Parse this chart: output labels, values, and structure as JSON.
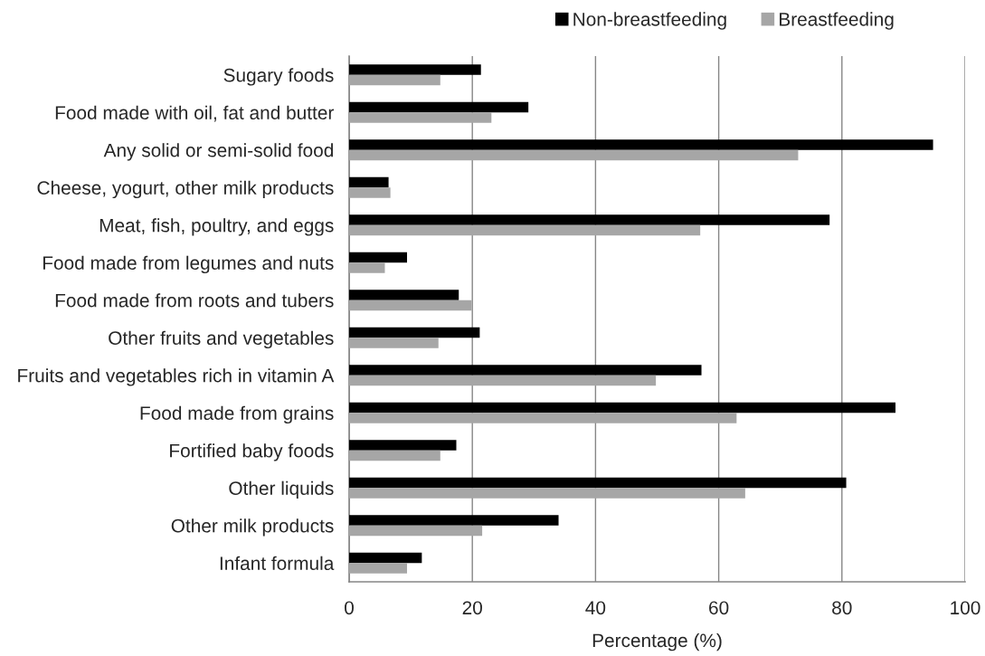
{
  "chart_data": {
    "type": "bar",
    "orientation": "horizontal",
    "categories": [
      "Sugary foods",
      "Food made with oil, fat and butter",
      "Any solid or semi-solid food",
      "Cheese, yogurt, other milk products",
      "Meat, fish, poultry, and eggs",
      "Food made from legumes and nuts",
      "Food made from roots and tubers",
      "Other fruits and vegetables",
      "Fruits and vegetables rich in vitamin A",
      "Food made from grains",
      "Fortified baby foods",
      "Other liquids",
      "Other milk products",
      "Infant formula"
    ],
    "series": [
      {
        "name": "Non-breastfeeding",
        "color": "#000000",
        "values": [
          21.4,
          29.1,
          94.8,
          6.4,
          78.0,
          9.4,
          17.8,
          21.2,
          57.2,
          88.7,
          17.4,
          80.7,
          34.0,
          11.8
        ]
      },
      {
        "name": "Breastfeeding",
        "color": "#a6a6a6",
        "values": [
          14.8,
          23.1,
          72.9,
          6.7,
          57.0,
          5.8,
          19.9,
          14.5,
          49.8,
          62.9,
          14.8,
          64.3,
          21.6,
          9.4
        ]
      }
    ],
    "xlabel": "Percentage (%)",
    "xlim": [
      0,
      100
    ],
    "xticks": [
      0,
      20,
      40,
      60,
      80,
      100
    ],
    "grid": "x",
    "legend": "top"
  }
}
